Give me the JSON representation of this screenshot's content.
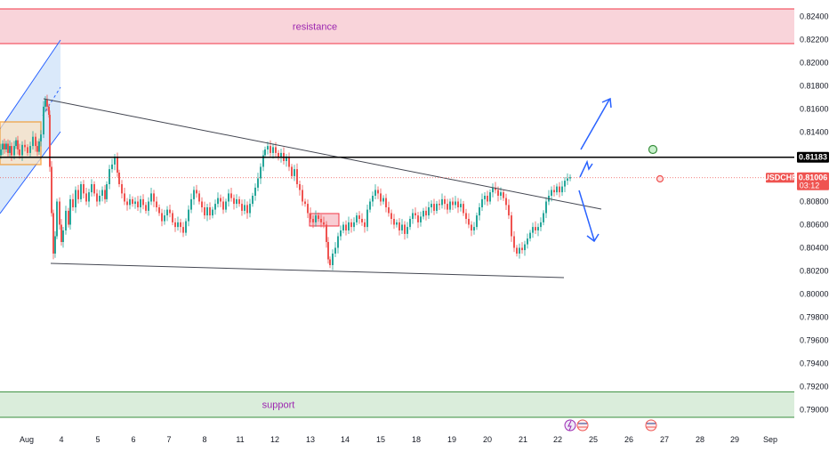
{
  "chart_data": {
    "type": "candlestick",
    "symbol": "USDCHF",
    "last_price": "0.81006",
    "countdown": "03:12",
    "level_price": "0.81183",
    "ylim": [
      0.7889,
      0.8249
    ],
    "y_ticks": [
      "0.82400",
      "0.82200",
      "0.82000",
      "0.81800",
      "0.81600",
      "0.81400",
      "0.81200",
      "0.81000",
      "0.80800",
      "0.80600",
      "0.80400",
      "0.80200",
      "0.80000",
      "0.79800",
      "0.79600",
      "0.79400",
      "0.79200",
      "0.79000"
    ],
    "x_ticks": [
      "Aug",
      "4",
      "5",
      "6",
      "7",
      "8",
      "11",
      "12",
      "13",
      "14",
      "15",
      "18",
      "19",
      "20",
      "21",
      "22",
      "25",
      "26",
      "27",
      "28",
      "29",
      "Sep"
    ],
    "zones": {
      "resistance": {
        "label": "resistance",
        "top": 0.82465,
        "bottom": 0.82165
      },
      "support": {
        "label": "support",
        "top": 0.79155,
        "bottom": 0.78935
      }
    },
    "colors": {
      "up": "#26a69a",
      "down": "#ef5350",
      "resistance_fill": "#f8cdd3",
      "resistance_line": "#f23645",
      "support_fill": "#d3ead5",
      "support_line": "#388e3c",
      "trend": "#434651",
      "projection": "#2962ff",
      "level": "#000000",
      "axis_text": "#131722"
    },
    "path": [
      [
        -5,
        0.8125
      ],
      [
        -2,
        0.812
      ],
      [
        0,
        0.8125
      ],
      [
        2,
        0.813
      ],
      [
        4,
        0.8125
      ],
      [
        6,
        0.813
      ],
      [
        8,
        0.8122
      ],
      [
        10,
        0.8128
      ],
      [
        12,
        0.812
      ],
      [
        15,
        0.8128
      ],
      [
        17,
        0.8133
      ],
      [
        19,
        0.8125
      ],
      [
        21,
        0.812
      ],
      [
        24,
        0.8129
      ],
      [
        27,
        0.8127
      ],
      [
        30,
        0.8122
      ],
      [
        33,
        0.8128
      ],
      [
        36,
        0.8136
      ],
      [
        39,
        0.8128
      ],
      [
        41,
        0.8123
      ],
      [
        43,
        0.8132
      ],
      [
        45,
        0.8138
      ],
      [
        48,
        0.8162
      ],
      [
        50,
        0.8168
      ],
      [
        52,
        0.8162
      ],
      [
        54,
        0.8155
      ],
      [
        55,
        0.811
      ],
      [
        57,
        0.807
      ],
      [
        59,
        0.8035
      ],
      [
        61,
        0.805
      ],
      [
        63,
        0.808
      ],
      [
        66,
        0.806
      ],
      [
        68,
        0.8045
      ],
      [
        70,
        0.8055
      ],
      [
        73,
        0.8072
      ],
      [
        76,
        0.806
      ],
      [
        78,
        0.8082
      ],
      [
        81,
        0.8075
      ],
      [
        84,
        0.809
      ],
      [
        87,
        0.8082
      ],
      [
        90,
        0.8095
      ],
      [
        93,
        0.8087
      ],
      [
        96,
        0.808
      ],
      [
        99,
        0.8088
      ],
      [
        102,
        0.8095
      ],
      [
        105,
        0.8087
      ],
      [
        108,
        0.808
      ],
      [
        111,
        0.8085
      ],
      [
        114,
        0.809
      ],
      [
        117,
        0.8082
      ],
      [
        119,
        0.8095
      ],
      [
        122,
        0.8108
      ],
      [
        125,
        0.8112
      ],
      [
        128,
        0.8118
      ],
      [
        131,
        0.8105
      ],
      [
        133,
        0.8095
      ],
      [
        136,
        0.8087
      ],
      [
        139,
        0.808
      ],
      [
        142,
        0.8077
      ],
      [
        145,
        0.8082
      ],
      [
        148,
        0.8078
      ],
      [
        151,
        0.808
      ],
      [
        154,
        0.8075
      ],
      [
        157,
        0.8082
      ],
      [
        160,
        0.8077
      ],
      [
        163,
        0.8072
      ],
      [
        166,
        0.808
      ],
      [
        169,
        0.8087
      ],
      [
        172,
        0.808
      ],
      [
        175,
        0.8075
      ],
      [
        178,
        0.807
      ],
      [
        181,
        0.8063
      ],
      [
        184,
        0.8068
      ],
      [
        187,
        0.8073
      ],
      [
        190,
        0.807
      ],
      [
        193,
        0.8062
      ],
      [
        196,
        0.8058
      ],
      [
        199,
        0.8062
      ],
      [
        202,
        0.8058
      ],
      [
        205,
        0.8053
      ],
      [
        208,
        0.8063
      ],
      [
        211,
        0.8073
      ],
      [
        214,
        0.8082
      ],
      [
        217,
        0.809
      ],
      [
        220,
        0.8087
      ],
      [
        223,
        0.808
      ],
      [
        226,
        0.8075
      ],
      [
        229,
        0.8068
      ],
      [
        232,
        0.8075
      ],
      [
        235,
        0.8068
      ],
      [
        238,
        0.8073
      ],
      [
        241,
        0.8078
      ],
      [
        244,
        0.8083
      ],
      [
        247,
        0.808
      ],
      [
        250,
        0.8073
      ],
      [
        253,
        0.808
      ],
      [
        256,
        0.8087
      ],
      [
        259,
        0.8083
      ],
      [
        262,
        0.8078
      ],
      [
        265,
        0.8082
      ],
      [
        268,
        0.8078
      ],
      [
        271,
        0.8072
      ],
      [
        274,
        0.8077
      ],
      [
        277,
        0.807
      ],
      [
        280,
        0.8078
      ],
      [
        283,
        0.8085
      ],
      [
        286,
        0.8092
      ],
      [
        289,
        0.81
      ],
      [
        292,
        0.811
      ],
      [
        295,
        0.812
      ],
      [
        297,
        0.8125
      ],
      [
        300,
        0.8128
      ],
      [
        303,
        0.8122
      ],
      [
        306,
        0.8127
      ],
      [
        309,
        0.8122
      ],
      [
        312,
        0.8118
      ],
      [
        315,
        0.8122
      ],
      [
        318,
        0.8115
      ],
      [
        321,
        0.8118
      ],
      [
        324,
        0.811
      ],
      [
        327,
        0.8102
      ],
      [
        330,
        0.8108
      ],
      [
        333,
        0.8095
      ],
      [
        336,
        0.809
      ],
      [
        339,
        0.808
      ],
      [
        342,
        0.8078
      ],
      [
        345,
        0.807
      ],
      [
        348,
        0.8065
      ],
      [
        351,
        0.8062
      ],
      [
        354,
        0.8068
      ],
      [
        357,
        0.8065
      ],
      [
        360,
        0.8062
      ],
      [
        363,
        0.806
      ],
      [
        366,
        0.8045
      ],
      [
        368,
        0.803
      ],
      [
        370,
        0.8025
      ],
      [
        373,
        0.8035
      ],
      [
        376,
        0.804
      ],
      [
        379,
        0.805
      ],
      [
        382,
        0.8055
      ],
      [
        385,
        0.806
      ],
      [
        388,
        0.8055
      ],
      [
        391,
        0.8062
      ],
      [
        394,
        0.8058
      ],
      [
        397,
        0.8062
      ],
      [
        400,
        0.8068
      ],
      [
        403,
        0.8065
      ],
      [
        406,
        0.8062
      ],
      [
        409,
        0.8058
      ],
      [
        412,
        0.8073
      ],
      [
        415,
        0.808
      ],
      [
        418,
        0.8085
      ],
      [
        421,
        0.809
      ],
      [
        424,
        0.8087
      ],
      [
        427,
        0.808
      ],
      [
        430,
        0.8083
      ],
      [
        433,
        0.8075
      ],
      [
        436,
        0.807
      ],
      [
        439,
        0.8065
      ],
      [
        442,
        0.806
      ],
      [
        445,
        0.8062
      ],
      [
        448,
        0.8055
      ],
      [
        451,
        0.806
      ],
      [
        454,
        0.8052
      ],
      [
        457,
        0.8058
      ],
      [
        460,
        0.8065
      ],
      [
        463,
        0.807
      ],
      [
        466,
        0.8068
      ],
      [
        469,
        0.8062
      ],
      [
        472,
        0.8067
      ],
      [
        475,
        0.8072
      ],
      [
        478,
        0.8068
      ],
      [
        481,
        0.8075
      ],
      [
        484,
        0.8078
      ],
      [
        487,
        0.8072
      ],
      [
        490,
        0.8078
      ],
      [
        493,
        0.8077
      ],
      [
        496,
        0.8082
      ],
      [
        499,
        0.8078
      ],
      [
        502,
        0.8073
      ],
      [
        505,
        0.808
      ],
      [
        508,
        0.8077
      ],
      [
        511,
        0.808
      ],
      [
        514,
        0.8075
      ],
      [
        517,
        0.8078
      ],
      [
        520,
        0.807
      ],
      [
        523,
        0.8065
      ],
      [
        526,
        0.806
      ],
      [
        529,
        0.8055
      ],
      [
        532,
        0.8058
      ],
      [
        535,
        0.8068
      ],
      [
        538,
        0.8075
      ],
      [
        541,
        0.8082
      ],
      [
        544,
        0.8085
      ],
      [
        547,
        0.808
      ],
      [
        550,
        0.8088
      ],
      [
        553,
        0.8092
      ],
      [
        556,
        0.809
      ],
      [
        559,
        0.8085
      ],
      [
        562,
        0.8088
      ],
      [
        565,
        0.8083
      ],
      [
        568,
        0.8077
      ],
      [
        571,
        0.8068
      ],
      [
        574,
        0.805
      ],
      [
        577,
        0.804
      ],
      [
        580,
        0.8035
      ],
      [
        583,
        0.804
      ],
      [
        586,
        0.8038
      ],
      [
        589,
        0.8043
      ],
      [
        592,
        0.8048
      ],
      [
        595,
        0.8053
      ],
      [
        598,
        0.8058
      ],
      [
        601,
        0.8055
      ],
      [
        604,
        0.8058
      ],
      [
        607,
        0.8062
      ],
      [
        610,
        0.807
      ],
      [
        613,
        0.808
      ],
      [
        616,
        0.8085
      ],
      [
        619,
        0.809
      ],
      [
        622,
        0.8088
      ],
      [
        625,
        0.8093
      ],
      [
        628,
        0.8088
      ],
      [
        631,
        0.8093
      ],
      [
        634,
        0.8098
      ],
      [
        637,
        0.81
      ],
      [
        640,
        0.8101
      ]
    ]
  }
}
